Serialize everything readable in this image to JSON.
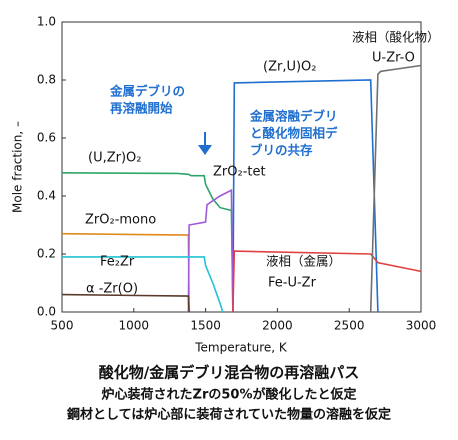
{
  "chart_data": {
    "type": "line",
    "x_label": "Temperature, K",
    "y_label": "Mole fraction, –",
    "xlim": [
      500,
      3000
    ],
    "xticks": [
      500,
      1000,
      1500,
      2000,
      2500,
      3000
    ],
    "ylim": [
      0,
      1
    ],
    "yticks": [
      {
        "value": 0,
        "label": "0.0"
      },
      0.2,
      0.4,
      0.6,
      0.8,
      {
        "value": 1,
        "label": "1.0"
      }
    ],
    "series": [
      {
        "name": "(U,Zr)O₂",
        "color": "#2ea56a",
        "x": [
          500,
          1300,
          1380,
          1400,
          1490,
          1500,
          1550,
          1600,
          1680,
          1690
        ],
        "values": [
          0.48,
          0.478,
          0.475,
          0.47,
          0.47,
          0.44,
          0.39,
          0.36,
          0.35,
          0
        ]
      },
      {
        "name": "(Zr,U)O₂",
        "color": "#1f6fd0",
        "x": [
          1690,
          1700,
          2650,
          2700
        ],
        "values": [
          0,
          0.79,
          0.8,
          0
        ]
      },
      {
        "name": "ZrO₂-mono",
        "color": "#e08a1c",
        "x": [
          500,
          1380,
          1385
        ],
        "values": [
          0.27,
          0.265,
          0
        ]
      },
      {
        "name": "ZrO₂-tet",
        "color": "#a05ad8",
        "x": [
          1380,
          1385,
          1500,
          1510,
          1600,
          1680,
          1690
        ],
        "values": [
          0,
          0.3,
          0.31,
          0.37,
          0.4,
          0.42,
          0
        ]
      },
      {
        "name": "Fe₂Zr",
        "color": "#22c3d3",
        "x": [
          500,
          1490,
          1500,
          1550,
          1600,
          1620
        ],
        "values": [
          0.19,
          0.19,
          0.16,
          0.1,
          0.03,
          0
        ]
      },
      {
        "name": "α -Zr(O)",
        "color": "#5a3a2a",
        "x": [
          500,
          1380,
          1385
        ],
        "values": [
          0.06,
          0.055,
          0
        ]
      },
      {
        "name": "Fe-U-Zr",
        "color": "#e04040",
        "x": [
          1690,
          1700,
          2650,
          2700,
          3000
        ],
        "values": [
          0,
          0.21,
          0.2,
          0.17,
          0.14
        ]
      },
      {
        "name": "U-Zr-O",
        "color": "#707070",
        "x": [
          2650,
          2700,
          2720,
          3000
        ],
        "values": [
          0,
          0.82,
          0.83,
          0.85
        ]
      }
    ],
    "annotations": [
      {
        "lines": [
          "金属デブリの",
          "再溶融開始"
        ]
      },
      {
        "lines": [
          "金属溶融デブリ",
          "と酸化物固相デ",
          "ブリの共存"
        ]
      },
      {
        "lines": [
          "液相（酸化物）"
        ]
      },
      {
        "lines": [
          "液相（金属）"
        ]
      }
    ],
    "caption": [
      "酸化物/金属デブリ混合物の再溶融パス",
      "炉心装荷されたZrの50%が酸化したと仮定",
      "鋼材としては炉心部に装荷されていた物量の溶融を仮定"
    ]
  }
}
